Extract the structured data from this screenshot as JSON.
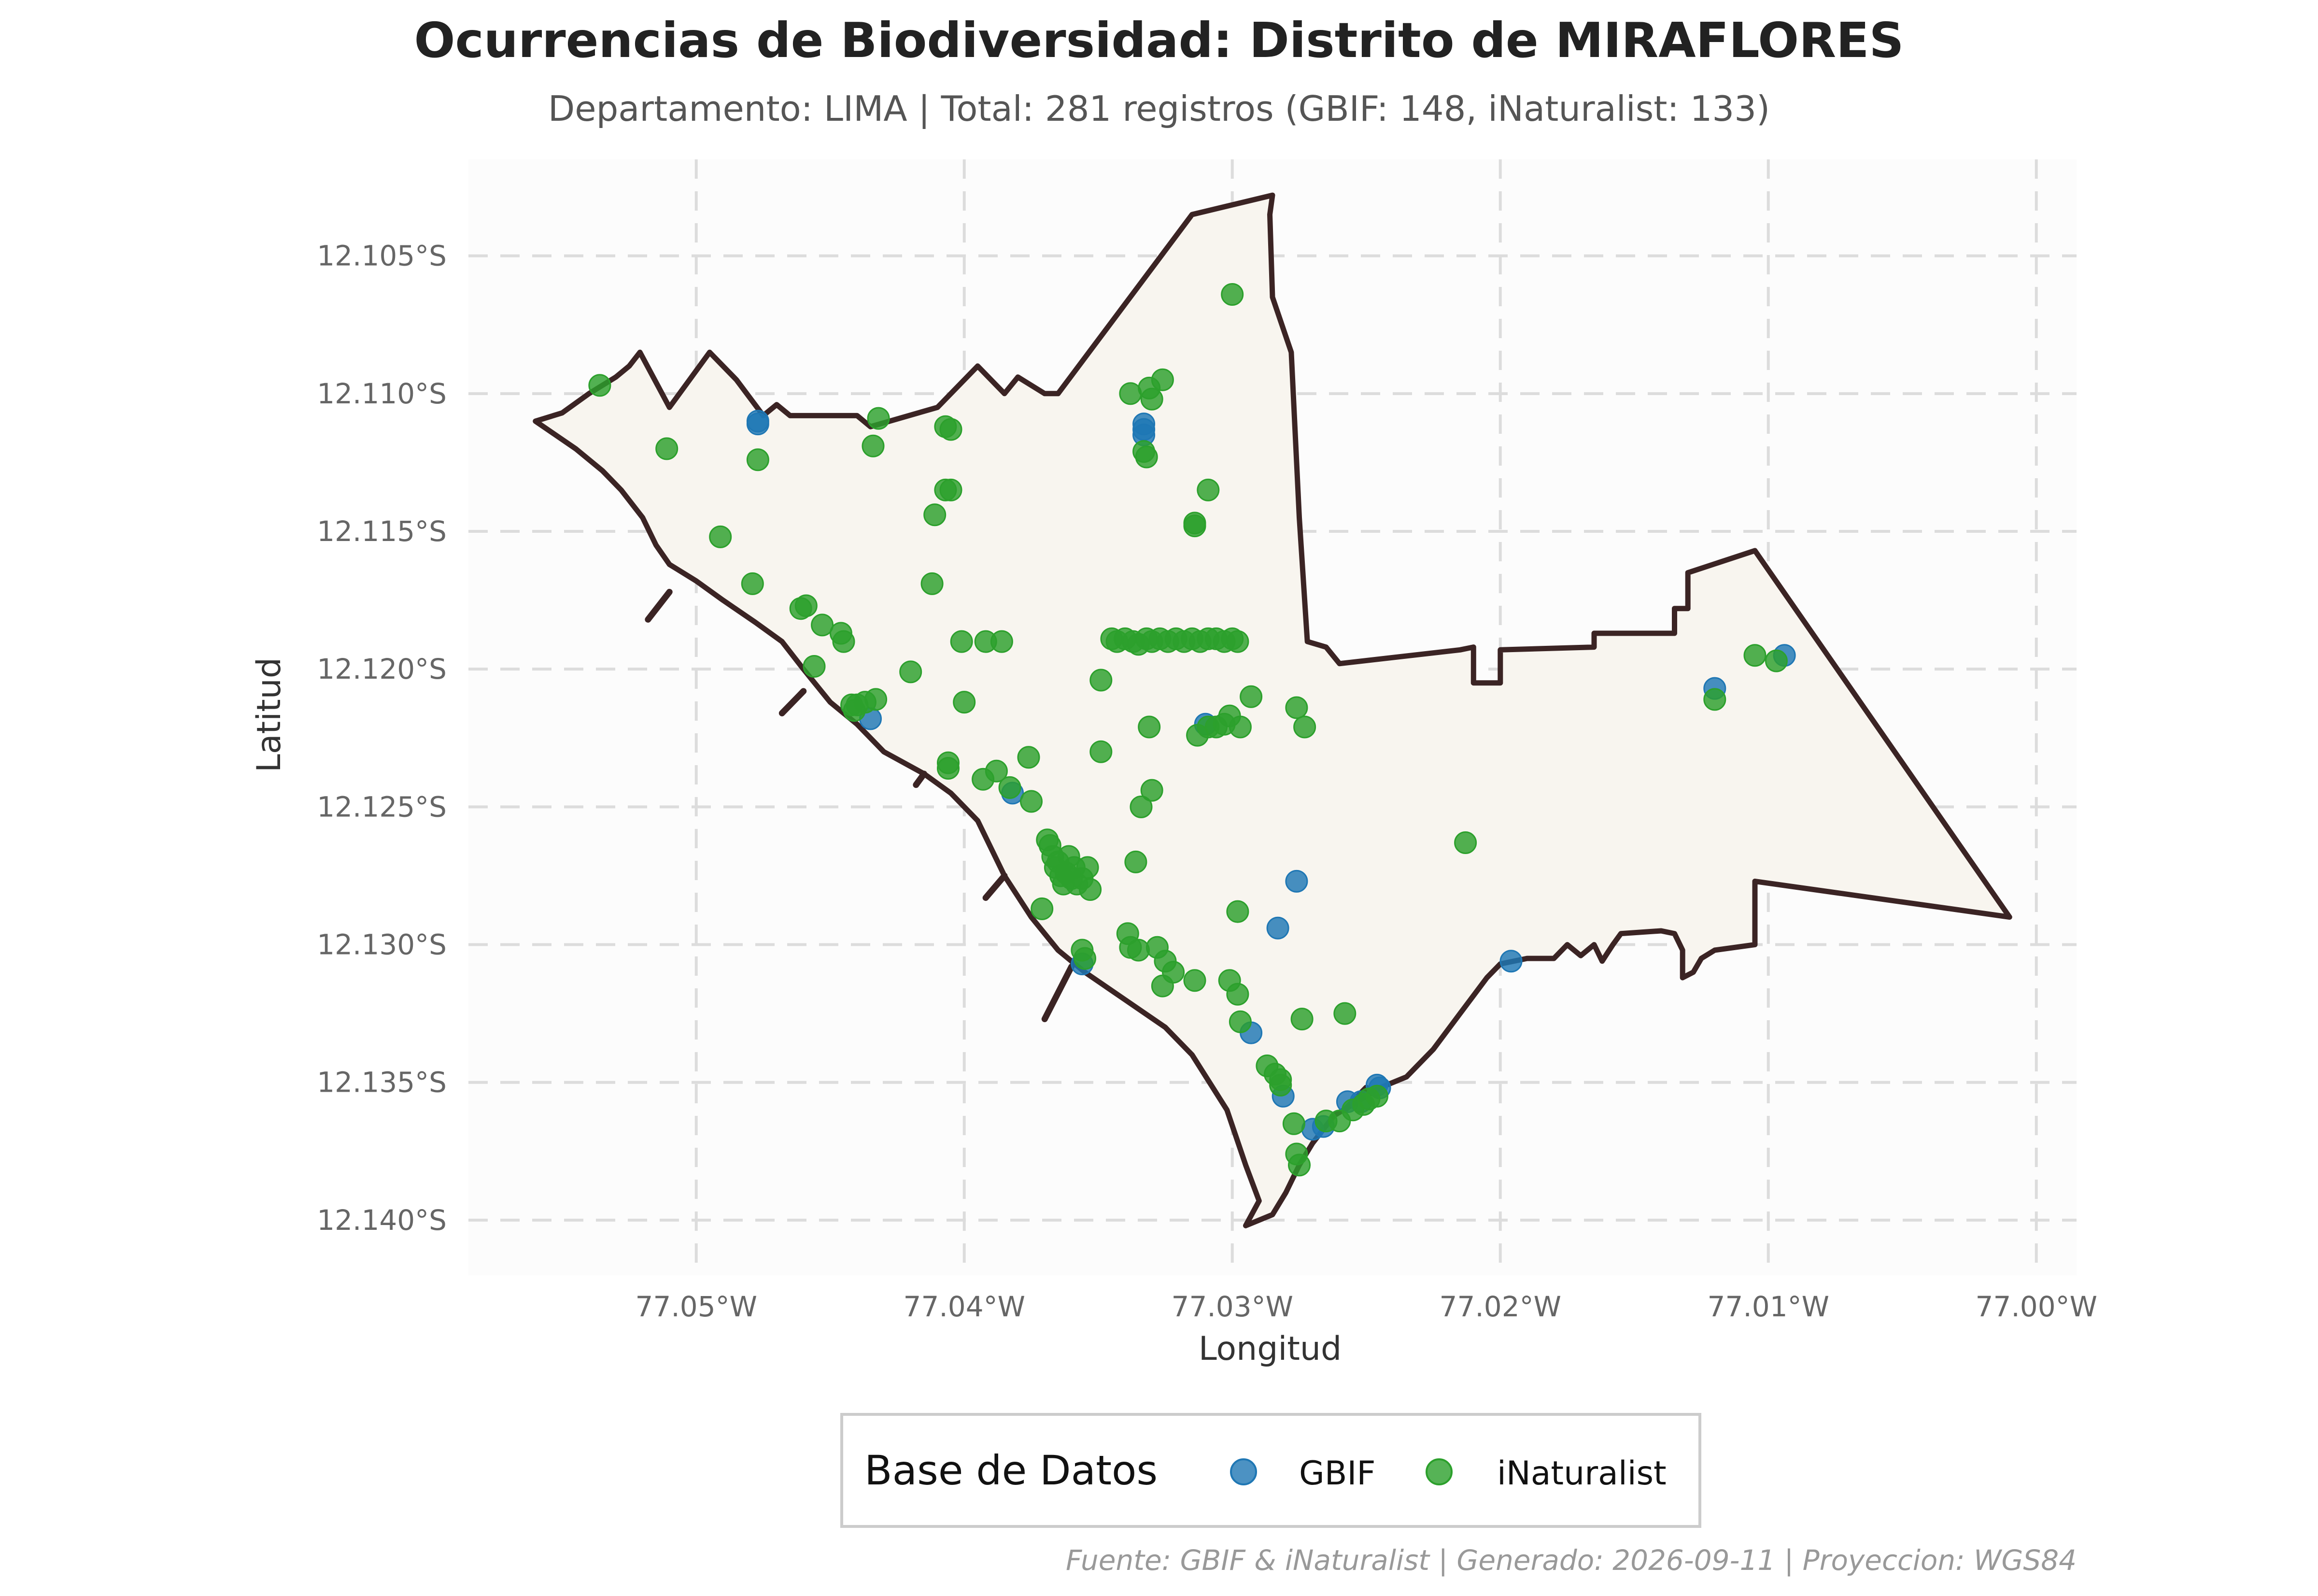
{
  "title": "Ocurrencias de Biodiversidad: Distrito de MIRAFLORES",
  "subtitle": "Departamento: LIMA | Total: 281 registros (GBIF: 148, iNaturalist: 133)",
  "footer": "Fuente: GBIF & iNaturalist | Generado: 2026-09-11 | Proyeccion: WGS84",
  "colors": {
    "gbif": "#1f77b4",
    "inaturalist": "#2ca02c",
    "district_fill": "#f8f5ef",
    "district_stroke": "#3b2424",
    "panel_bg": "#fcfcfc",
    "grid": "#dcdcdc"
  },
  "chart_data": {
    "type": "scatter",
    "xlabel": "Longitud",
    "ylabel": "Latitud",
    "xlim": [
      -77.0585,
      -76.9985
    ],
    "ylim": [
      -12.142,
      -12.1015
    ],
    "x_ticks": [
      {
        "value": -77.05,
        "label": "77.05°W"
      },
      {
        "value": -77.04,
        "label": "77.04°W"
      },
      {
        "value": -77.03,
        "label": "77.03°W"
      },
      {
        "value": -77.02,
        "label": "77.02°W"
      },
      {
        "value": -77.01,
        "label": "77.01°W"
      },
      {
        "value": -77.0,
        "label": "77.00°W"
      }
    ],
    "y_ticks": [
      {
        "value": -12.105,
        "label": "12.105°S"
      },
      {
        "value": -12.11,
        "label": "12.110°S"
      },
      {
        "value": -12.115,
        "label": "12.115°S"
      },
      {
        "value": -12.12,
        "label": "12.120°S"
      },
      {
        "value": -12.125,
        "label": "12.125°S"
      },
      {
        "value": -12.13,
        "label": "12.130°S"
      },
      {
        "value": -12.135,
        "label": "12.135°S"
      },
      {
        "value": -12.14,
        "label": "12.140°S"
      }
    ],
    "grid": true,
    "legend": {
      "title": "Base de Datos",
      "placement": "bottom-center",
      "entries": [
        {
          "label": "GBIF",
          "color": "#1f77b4"
        },
        {
          "label": "iNaturalist",
          "color": "#2ca02c"
        }
      ]
    },
    "boundary": [
      [
        -77.056,
        -12.111
      ],
      [
        -77.055,
        -12.1107
      ],
      [
        -77.054,
        -12.11
      ],
      [
        -77.053,
        -12.1094
      ],
      [
        -77.0525,
        -12.109
      ],
      [
        -77.0521,
        -12.1085
      ],
      [
        -77.051,
        -12.1105
      ],
      [
        -77.0495,
        -12.1085
      ],
      [
        -77.0485,
        -12.1095
      ],
      [
        -77.0475,
        -12.1108
      ],
      [
        -77.047,
        -12.1104
      ],
      [
        -77.0465,
        -12.1108
      ],
      [
        -77.044,
        -12.1108
      ],
      [
        -77.0435,
        -12.1112
      ],
      [
        -77.041,
        -12.1105
      ],
      [
        -77.0395,
        -12.109
      ],
      [
        -77.0385,
        -12.11
      ],
      [
        -77.038,
        -12.1094
      ],
      [
        -77.037,
        -12.11
      ],
      [
        -77.0365,
        -12.11
      ],
      [
        -77.0315,
        -12.1035
      ],
      [
        -77.0285,
        -12.1028
      ],
      [
        -77.0286,
        -12.1035
      ],
      [
        -77.0285,
        -12.1065
      ],
      [
        -77.0278,
        -12.1085
      ],
      [
        -77.0275,
        -12.1145
      ],
      [
        -77.0272,
        -12.119
      ],
      [
        -77.0265,
        -12.1192
      ],
      [
        -77.026,
        -12.1198
      ],
      [
        -77.0215,
        -12.1193
      ],
      [
        -77.021,
        -12.1192
      ],
      [
        -77.021,
        -12.1205
      ],
      [
        -77.02,
        -12.1205
      ],
      [
        -77.02,
        -12.1193
      ],
      [
        -77.0165,
        -12.1192
      ],
      [
        -77.0165,
        -12.1187
      ],
      [
        -77.0135,
        -12.1187
      ],
      [
        -77.0135,
        -12.1178
      ],
      [
        -77.013,
        -12.1178
      ],
      [
        -77.013,
        -12.1165
      ],
      [
        -77.0105,
        -12.1157
      ],
      [
        -77.001,
        -12.129
      ],
      [
        -77.0105,
        -12.1277
      ],
      [
        -77.0105,
        -12.13
      ],
      [
        -77.012,
        -12.1302
      ],
      [
        -77.0125,
        -12.1305
      ],
      [
        -77.0128,
        -12.131
      ],
      [
        -77.0132,
        -12.1312
      ],
      [
        -77.0132,
        -12.1302
      ],
      [
        -77.0135,
        -12.1296
      ],
      [
        -77.014,
        -12.1295
      ],
      [
        -77.0155,
        -12.1296
      ],
      [
        -77.0158,
        -12.13
      ],
      [
        -77.016,
        -12.1303
      ],
      [
        -77.0162,
        -12.1306
      ],
      [
        -77.0165,
        -12.13
      ],
      [
        -77.017,
        -12.1304
      ],
      [
        -77.0175,
        -12.13
      ],
      [
        -77.018,
        -12.1305
      ],
      [
        -77.019,
        -12.1305
      ],
      [
        -77.02,
        -12.1307
      ],
      [
        -77.0205,
        -12.1312
      ],
      [
        -77.0215,
        -12.1325
      ],
      [
        -77.0225,
        -12.1338
      ],
      [
        -77.0235,
        -12.1348
      ],
      [
        -77.0245,
        -12.1352
      ],
      [
        -77.0255,
        -12.1358
      ],
      [
        -77.0262,
        -12.1362
      ],
      [
        -77.027,
        -12.1372
      ],
      [
        -77.0275,
        -12.138
      ],
      [
        -77.028,
        -12.139
      ],
      [
        -77.0285,
        -12.1398
      ],
      [
        -77.0295,
        -12.1402
      ],
      [
        -77.029,
        -12.1393
      ],
      [
        -77.0295,
        -12.138
      ],
      [
        -77.0302,
        -12.136
      ],
      [
        -77.0315,
        -12.134
      ],
      [
        -77.0325,
        -12.133
      ],
      [
        -77.034,
        -12.132
      ],
      [
        -77.0355,
        -12.131
      ],
      [
        -77.0365,
        -12.1302
      ],
      [
        -77.0375,
        -12.129
      ],
      [
        -77.0385,
        -12.1275
      ],
      [
        -77.0395,
        -12.1255
      ],
      [
        -77.0405,
        -12.1245
      ],
      [
        -77.0415,
        -12.1238
      ],
      [
        -77.043,
        -12.123
      ],
      [
        -77.044,
        -12.122
      ],
      [
        -77.045,
        -12.1212
      ],
      [
        -77.046,
        -12.12
      ],
      [
        -77.0468,
        -12.119
      ],
      [
        -77.0478,
        -12.1183
      ],
      [
        -77.049,
        -12.1175
      ],
      [
        -77.05,
        -12.1168
      ],
      [
        -77.051,
        -12.1162
      ],
      [
        -77.0515,
        -12.1155
      ],
      [
        -77.052,
        -12.1145
      ],
      [
        -77.0528,
        -12.1135
      ],
      [
        -77.0535,
        -12.1128
      ],
      [
        -77.0545,
        -12.112
      ],
      [
        -77.056,
        -12.111
      ]
    ],
    "coast_segments": [
      [
        [
          -77.051,
          -12.1172
        ],
        [
          -77.0518,
          -12.1182
        ]
      ],
      [
        [
          -77.046,
          -12.1208
        ],
        [
          -77.0468,
          -12.1216
        ]
      ],
      [
        [
          -77.0415,
          -12.1238
        ],
        [
          -77.0418,
          -12.1242
        ]
      ],
      [
        [
          -77.0385,
          -12.1275
        ],
        [
          -77.0392,
          -12.1283
        ]
      ],
      [
        [
          -77.036,
          -12.1308
        ],
        [
          -77.037,
          -12.1327
        ]
      ],
      [
        [
          -77.0258,
          -12.136
        ],
        [
          -77.025,
          -12.1352
        ]
      ]
    ],
    "series": [
      {
        "name": "GBIF",
        "color": "#1f77b4",
        "points": [
          [
            -77.0477,
            -12.1111
          ],
          [
            -77.0477,
            -12.111
          ],
          [
            -77.0333,
            -12.1111
          ],
          [
            -77.0333,
            -12.1115
          ],
          [
            -77.0333,
            -12.1113
          ],
          [
            -77.0435,
            -12.1218
          ],
          [
            -77.0382,
            -12.1245
          ],
          [
            -77.0356,
            -12.1307
          ],
          [
            -77.031,
            -12.122
          ],
          [
            -77.0276,
            -12.1277
          ],
          [
            -77.0283,
            -12.1294
          ],
          [
            -77.0293,
            -12.1332
          ],
          [
            -77.0281,
            -12.1355
          ],
          [
            -77.027,
            -12.1367
          ],
          [
            -77.0266,
            -12.1366
          ],
          [
            -77.0257,
            -12.1357
          ],
          [
            -77.0252,
            -12.1357
          ],
          [
            -77.0246,
            -12.1351
          ],
          [
            -77.0245,
            -12.1352
          ],
          [
            -77.0196,
            -12.1306
          ],
          [
            -77.012,
            -12.1207
          ],
          [
            -77.0094,
            -12.1195
          ]
        ]
      },
      {
        "name": "iNaturalist",
        "color": "#2ca02c",
        "points": [
          [
            -77.0536,
            -12.1097
          ],
          [
            -77.0511,
            -12.112
          ],
          [
            -77.0477,
            -12.1124
          ],
          [
            -77.0491,
            -12.1152
          ],
          [
            -77.0479,
            -12.1169
          ],
          [
            -77.0461,
            -12.1178
          ],
          [
            -77.0459,
            -12.1177
          ],
          [
            -77.0453,
            -12.1184
          ],
          [
            -77.0446,
            -12.1187
          ],
          [
            -77.0445,
            -12.119
          ],
          [
            -77.0456,
            -12.1199
          ],
          [
            -77.0442,
            -12.1213
          ],
          [
            -77.0441,
            -12.1215
          ],
          [
            -77.044,
            -12.1213
          ],
          [
            -77.0437,
            -12.1212
          ],
          [
            -77.0433,
            -12.1211
          ],
          [
            -77.042,
            -12.1201
          ],
          [
            -77.0432,
            -12.1109
          ],
          [
            -77.0434,
            -12.1119
          ],
          [
            -77.0407,
            -12.1112
          ],
          [
            -77.0405,
            -12.1113
          ],
          [
            -77.0407,
            -12.1135
          ],
          [
            -77.0405,
            -12.1135
          ],
          [
            -77.0411,
            -12.1144
          ],
          [
            -77.0412,
            -12.1169
          ],
          [
            -77.0401,
            -12.119
          ],
          [
            -77.0392,
            -12.119
          ],
          [
            -77.0386,
            -12.119
          ],
          [
            -77.04,
            -12.1212
          ],
          [
            -77.0406,
            -12.1234
          ],
          [
            -77.0406,
            -12.1236
          ],
          [
            -77.0393,
            -12.124
          ],
          [
            -77.0388,
            -12.1237
          ],
          [
            -77.0383,
            -12.1243
          ],
          [
            -77.0376,
            -12.1232
          ],
          [
            -77.0375,
            -12.1248
          ],
          [
            -77.0371,
            -12.1287
          ],
          [
            -77.0369,
            -12.1262
          ],
          [
            -77.0368,
            -12.1264
          ],
          [
            -77.0367,
            -12.1268
          ],
          [
            -77.0366,
            -12.1272
          ],
          [
            -77.0365,
            -12.127
          ],
          [
            -77.0364,
            -12.1275
          ],
          [
            -77.0363,
            -12.1278
          ],
          [
            -77.0362,
            -12.1274
          ],
          [
            -77.0361,
            -12.1268
          ],
          [
            -77.036,
            -12.1276
          ],
          [
            -77.0359,
            -12.1272
          ],
          [
            -77.0358,
            -12.1278
          ],
          [
            -77.0356,
            -12.1276
          ],
          [
            -77.0354,
            -12.1272
          ],
          [
            -77.0353,
            -12.128
          ],
          [
            -77.0356,
            -12.1302
          ],
          [
            -77.0355,
            -12.1305
          ],
          [
            -77.0349,
            -12.123
          ],
          [
            -77.0349,
            -12.1204
          ],
          [
            -77.0339,
            -12.1296
          ],
          [
            -77.0338,
            -12.1301
          ],
          [
            -77.0336,
            -12.127
          ],
          [
            -77.0334,
            -12.125
          ],
          [
            -77.0331,
            -12.1221
          ],
          [
            -77.033,
            -12.1244
          ],
          [
            -77.0326,
            -12.1315
          ],
          [
            -77.0328,
            -12.1301
          ],
          [
            -77.0325,
            -12.1306
          ],
          [
            -77.0322,
            -12.131
          ],
          [
            -77.0314,
            -12.1313
          ],
          [
            -77.0306,
            -12.1221
          ],
          [
            -77.0313,
            -12.1224
          ],
          [
            -77.0309,
            -12.1221
          ],
          [
            -77.0303,
            -12.122
          ],
          [
            -77.0301,
            -12.1217
          ],
          [
            -77.0297,
            -12.1221
          ],
          [
            -77.0293,
            -12.121
          ],
          [
            -77.0301,
            -12.1313
          ],
          [
            -77.0298,
            -12.1288
          ],
          [
            -77.0297,
            -12.1328
          ],
          [
            -77.03,
            -12.1064
          ],
          [
            -77.0309,
            -12.1135
          ],
          [
            -77.0314,
            -12.1148
          ],
          [
            -77.0314,
            -12.1147
          ],
          [
            -77.0338,
            -12.11
          ],
          [
            -77.0333,
            -12.1121
          ],
          [
            -77.0332,
            -12.1123
          ],
          [
            -77.0331,
            -12.1098
          ],
          [
            -77.033,
            -12.1102
          ],
          [
            -77.0326,
            -12.1095
          ],
          [
            -77.0345,
            -12.1189
          ],
          [
            -77.0343,
            -12.119
          ],
          [
            -77.034,
            -12.1189
          ],
          [
            -77.0337,
            -12.119
          ],
          [
            -77.0335,
            -12.1191
          ],
          [
            -77.0332,
            -12.1189
          ],
          [
            -77.033,
            -12.119
          ],
          [
            -77.0327,
            -12.1189
          ],
          [
            -77.0324,
            -12.119
          ],
          [
            -77.0321,
            -12.1189
          ],
          [
            -77.0318,
            -12.119
          ],
          [
            -77.0315,
            -12.1189
          ],
          [
            -77.0312,
            -12.119
          ],
          [
            -77.0309,
            -12.1189
          ],
          [
            -77.0306,
            -12.1189
          ],
          [
            -77.0303,
            -12.119
          ],
          [
            -77.03,
            -12.1189
          ],
          [
            -77.0298,
            -12.119
          ],
          [
            -77.0276,
            -12.1214
          ],
          [
            -77.0273,
            -12.1221
          ],
          [
            -77.0274,
            -12.1327
          ],
          [
            -77.0258,
            -12.1325
          ],
          [
            -77.0213,
            -12.1263
          ],
          [
            -77.0265,
            -12.1364
          ],
          [
            -77.026,
            -12.1364
          ],
          [
            -77.0255,
            -12.136
          ],
          [
            -77.0251,
            -12.1358
          ],
          [
            -77.0249,
            -12.1356
          ],
          [
            -77.0246,
            -12.1355
          ],
          [
            -77.0276,
            -12.1376
          ],
          [
            -77.0275,
            -12.138
          ],
          [
            -77.0277,
            -12.1365
          ],
          [
            -77.0282,
            -12.1349
          ],
          [
            -77.0282,
            -12.1351
          ],
          [
            -77.0284,
            -12.1347
          ],
          [
            -77.0287,
            -12.1344
          ],
          [
            -77.012,
            -12.1211
          ],
          [
            -77.0097,
            -12.1197
          ],
          [
            -77.0105,
            -12.1195
          ],
          [
            -77.0298,
            -12.1318
          ],
          [
            -77.0335,
            -12.1302
          ]
        ]
      }
    ]
  }
}
